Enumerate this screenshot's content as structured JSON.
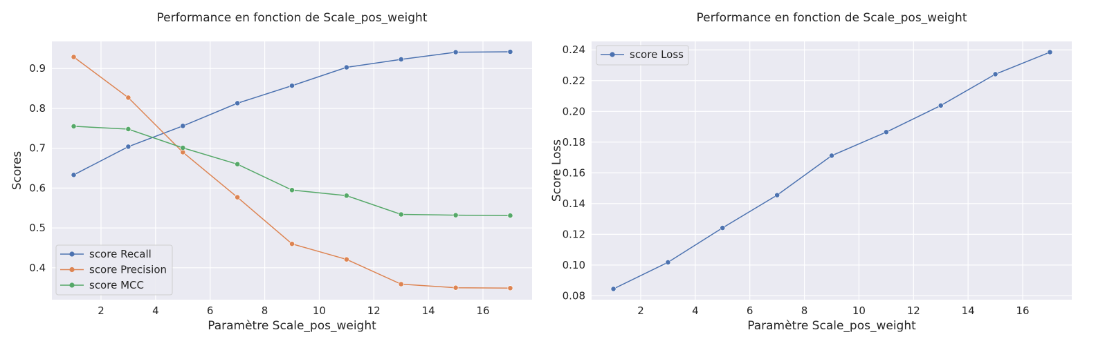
{
  "chart_data": [
    {
      "type": "line",
      "title": "Performance en fonction de Scale_pos_weight",
      "xlabel": "Paramètre Scale_pos_weight",
      "ylabel": "Scores",
      "x": [
        1,
        3,
        5,
        7,
        9,
        11,
        13,
        15,
        17
      ],
      "xlim": [
        0.2,
        17.8
      ],
      "ylim": [
        0.32,
        0.968
      ],
      "xticks": [
        2,
        4,
        6,
        8,
        10,
        12,
        14,
        16
      ],
      "yticks": [
        0.4,
        0.5,
        0.6,
        0.7,
        0.8,
        0.9
      ],
      "grid": true,
      "legend_position": "lower-left",
      "series": [
        {
          "name": "score Recall",
          "color": "#4c72b0",
          "values": [
            0.633,
            0.704,
            0.756,
            0.813,
            0.857,
            0.903,
            0.923,
            0.941,
            0.942
          ]
        },
        {
          "name": "score Precision",
          "color": "#dd8452",
          "values": [
            0.929,
            0.827,
            0.69,
            0.577,
            0.46,
            0.421,
            0.359,
            0.35,
            0.349
          ]
        },
        {
          "name": "score MCC",
          "color": "#55a868",
          "values": [
            0.755,
            0.748,
            0.701,
            0.66,
            0.595,
            0.581,
            0.534,
            0.532,
            0.531
          ]
        }
      ]
    },
    {
      "type": "line",
      "title": "Performance en fonction de Scale_pos_weight",
      "xlabel": "Paramètre Scale_pos_weight",
      "ylabel": "Score Loss",
      "x": [
        1,
        3,
        5,
        7,
        9,
        11,
        13,
        15,
        17
      ],
      "xlim": [
        0.2,
        17.8
      ],
      "ylim": [
        0.0775,
        0.2455
      ],
      "xticks": [
        2,
        4,
        6,
        8,
        10,
        12,
        14,
        16
      ],
      "yticks": [
        0.08,
        0.1,
        0.12,
        0.14,
        0.16,
        0.18,
        0.2,
        0.22,
        0.24
      ],
      "grid": true,
      "legend_position": "upper-left",
      "series": [
        {
          "name": "score Loss",
          "color": "#4c72b0",
          "values": [
            0.0845,
            0.1018,
            0.1242,
            0.1455,
            0.1712,
            0.1865,
            0.2038,
            0.2242,
            0.2385
          ]
        }
      ]
    }
  ]
}
